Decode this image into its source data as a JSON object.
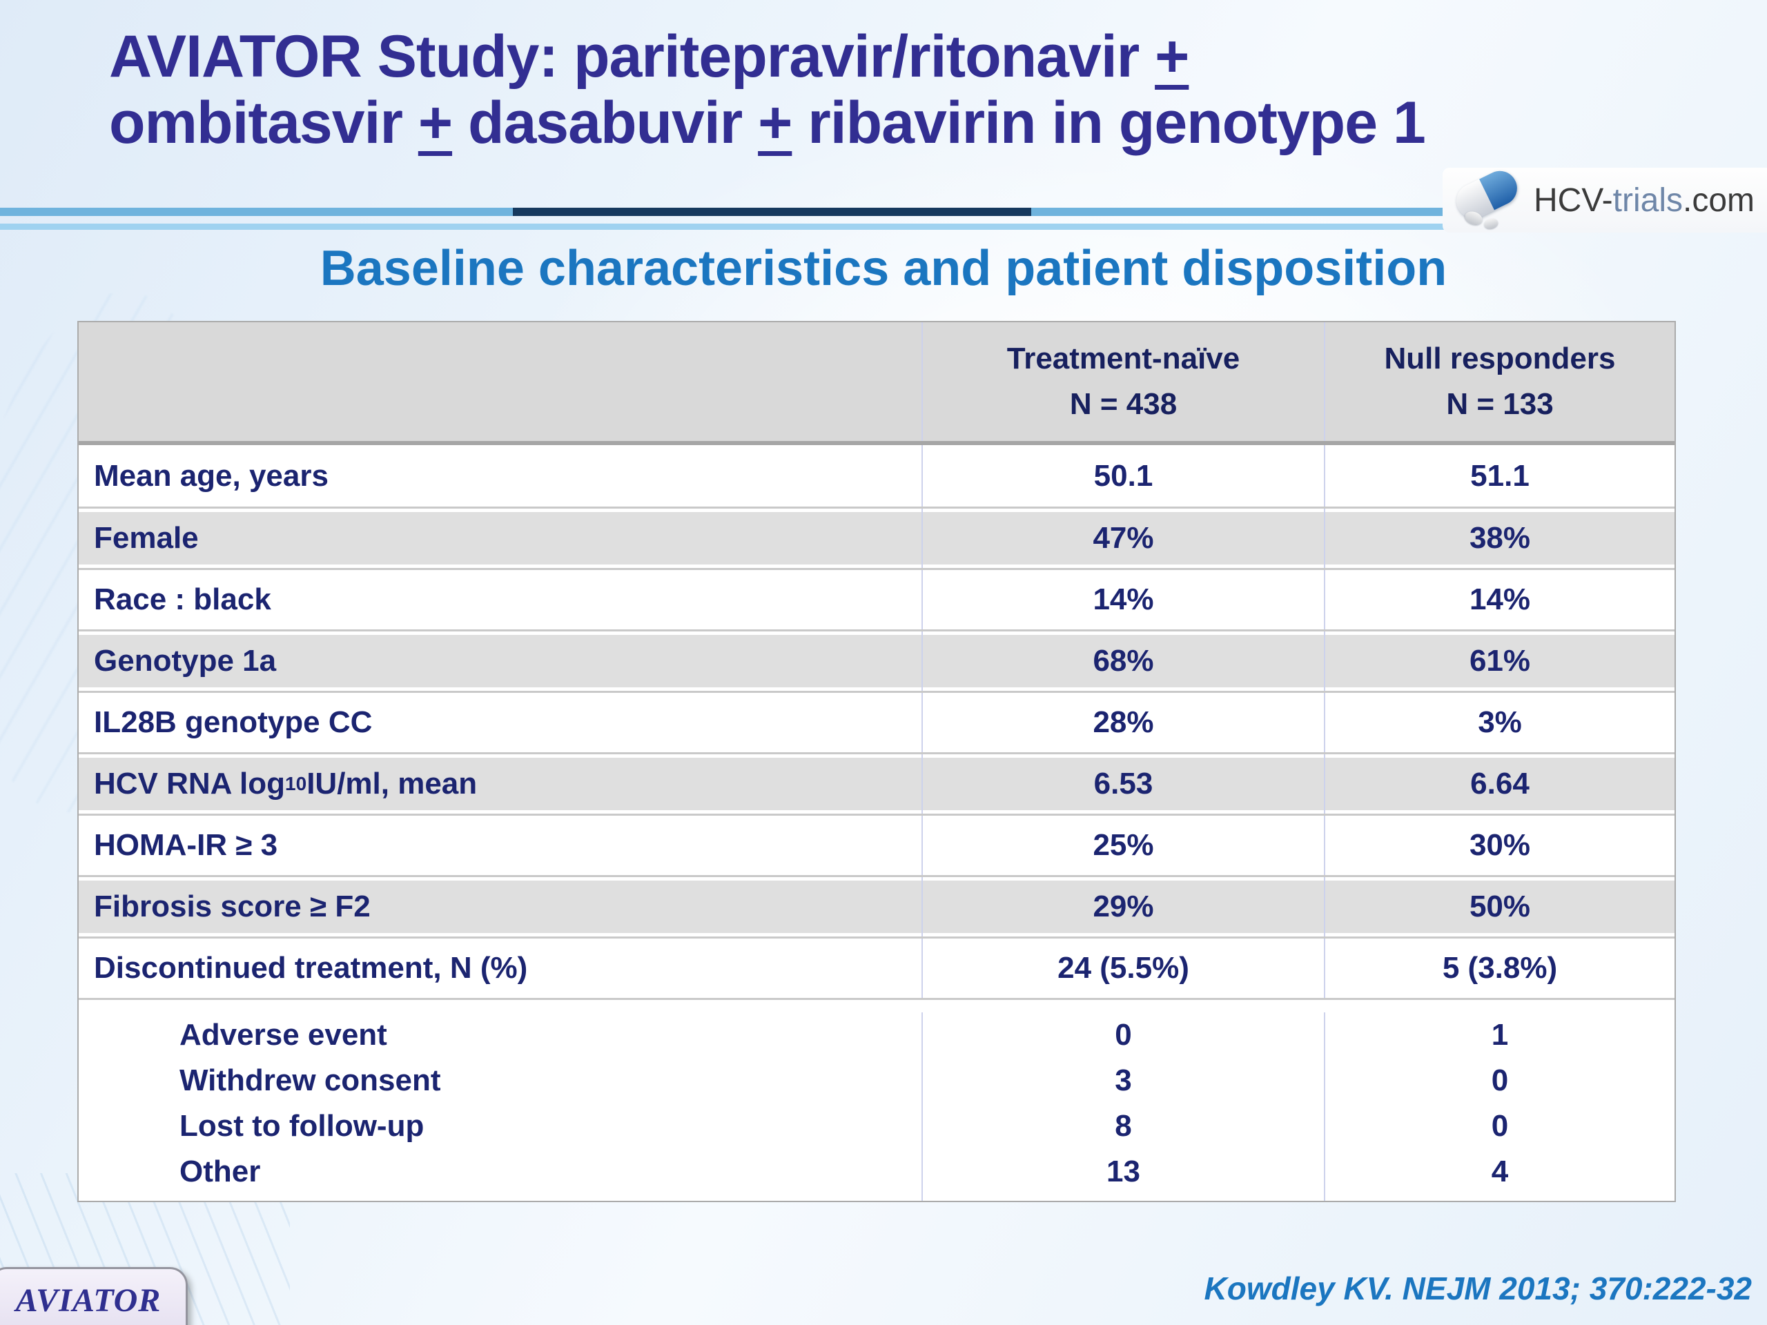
{
  "title": {
    "l1a": "AVIATOR Study: paritepravir/ritonavir ",
    "l1b": "+",
    "l2a": "ombitasvir ",
    "l2b": "+",
    "l2c": " dasabuvir ",
    "l2d": "+",
    "l2e": " ribavirin in genotype 1"
  },
  "logo": {
    "part1": "HCV-",
    "part2": "trials",
    "part3": ".com",
    "icon": "pill-capsule-icon"
  },
  "subtitle": "Baseline characteristics and patient disposition",
  "table": {
    "header": {
      "tn_line1": "Treatment-naïve",
      "tn_line2": "N = 438",
      "nr_line1": "Null responders",
      "nr_line2": "N = 133"
    },
    "rows": [
      {
        "label": "Mean age, years",
        "tn": "50.1",
        "nr": "51.1"
      },
      {
        "label": "Female",
        "tn": "47%",
        "nr": "38%"
      },
      {
        "label": "Race : black",
        "tn": "14%",
        "nr": "14%"
      },
      {
        "label": "Genotype 1a",
        "tn": "68%",
        "nr": "61%"
      },
      {
        "label": "IL28B genotype CC",
        "tn": "28%",
        "nr": "3%"
      },
      {
        "label_pre": "HCV RNA log",
        "label_sub": "10",
        "label_post": " IU/ml, mean",
        "tn": "6.53",
        "nr": "6.64"
      },
      {
        "label": "HOMA-IR ≥ 3",
        "tn": "25%",
        "nr": "30%"
      },
      {
        "label": "Fibrosis score ≥ F2",
        "tn": "29%",
        "nr": "50%"
      },
      {
        "label": "Discontinued treatment, N (%)",
        "tn": "24 (5.5%)",
        "nr": "5 (3.8%)"
      }
    ],
    "subrows": [
      {
        "label": "Adverse event",
        "tn": "0",
        "nr": "1"
      },
      {
        "label": "Withdrew consent",
        "tn": "3",
        "nr": "0"
      },
      {
        "label": "Lost to follow-up",
        "tn": "8",
        "nr": "0"
      },
      {
        "label": "Other",
        "tn": "13",
        "nr": "4"
      }
    ]
  },
  "badge_label": "AVIATOR",
  "citation": "Kowdley KV. NEJM 2013; 370:222-32",
  "colors": {
    "title_text": "#322E92",
    "heading_text": "#1B76C0",
    "table_text": "#1B2470",
    "header_bg": "#D9D9D9",
    "row_alt_bg": "#DFDFDF",
    "rule_light_blue": "#6FB3DD",
    "rule_dark_navy": "#16395E",
    "rule_secondary_blue": "#9FD2F0",
    "badge_bg": "#E8E3F2",
    "citation_text": "#1B76C0"
  }
}
